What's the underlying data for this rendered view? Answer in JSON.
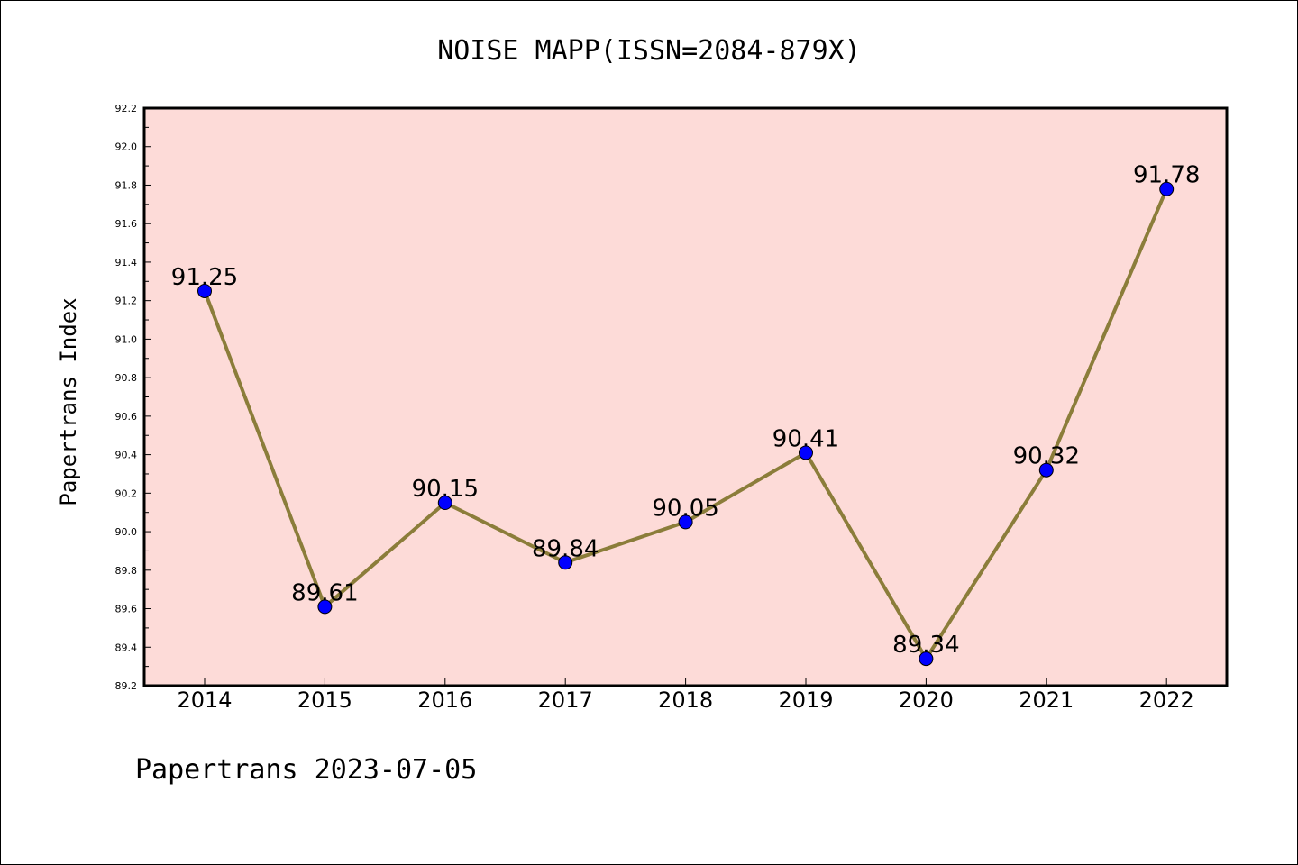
{
  "chart_data": {
    "type": "line",
    "title": "NOISE MAPP(ISSN=2084-879X)",
    "ylabel": "Papertrans Index",
    "xlabel": "",
    "categories": [
      "2014",
      "2015",
      "2016",
      "2017",
      "2018",
      "2019",
      "2020",
      "2021",
      "2022"
    ],
    "values": [
      91.25,
      89.61,
      90.15,
      89.84,
      90.05,
      90.41,
      89.34,
      90.32,
      91.78
    ],
    "data_labels": [
      "91.25",
      "89.61",
      "90.15",
      "89.84",
      "90.05",
      "90.41",
      "89.34",
      "90.32",
      "91.78"
    ],
    "ylim": [
      89.2,
      92.2
    ],
    "yticks": [
      "89.2",
      "89.4",
      "89.6",
      "89.8",
      "90.0",
      "90.2",
      "90.4",
      "90.6",
      "90.8",
      "91.0",
      "91.2",
      "91.4",
      "91.6",
      "91.8",
      "92.0",
      "92.2"
    ],
    "grid": false,
    "colors": {
      "plot_background": "#fddbd8",
      "line": "#8b7d3a",
      "marker": "#0000ff"
    }
  },
  "footer": "Papertrans 2023-07-05"
}
